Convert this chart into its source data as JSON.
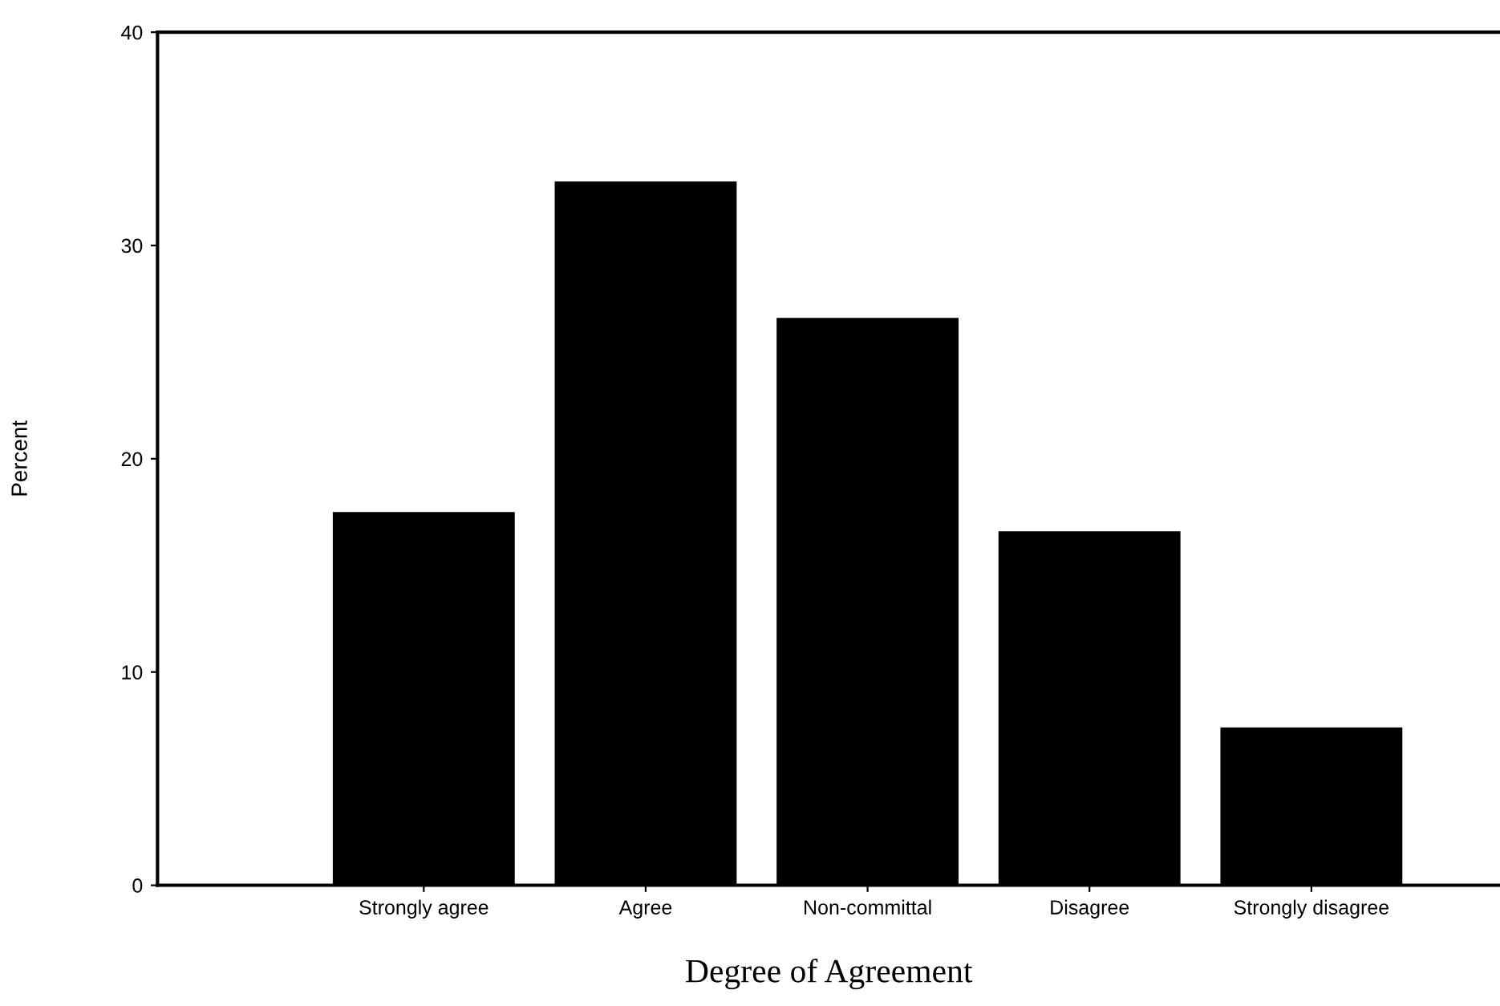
{
  "chart_data": {
    "type": "bar",
    "xlabel": "Degree of Agreement",
    "ylabel": "Percent",
    "categories": [
      "Strongly agree",
      "Agree",
      "Non-committal",
      "Disagree",
      "Strongly disagree"
    ],
    "values": [
      17.5,
      33.0,
      26.6,
      16.6,
      7.4
    ],
    "color": "#000000",
    "ylim": [
      0,
      40
    ],
    "yticks": [
      0,
      10,
      20,
      30,
      40
    ],
    "grid": false
  }
}
